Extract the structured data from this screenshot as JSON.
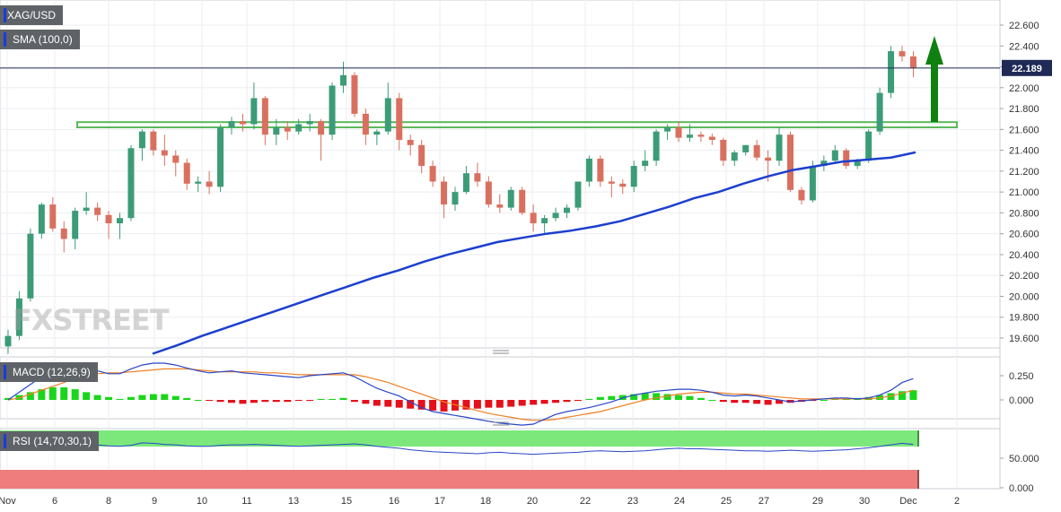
{
  "header": {
    "symbol": "XAG/USD",
    "sma_label": "SMA (100,0)",
    "macd_label": "MACD (12,26,9)",
    "rsi_label": "RSI (14,70,30,1)",
    "watermark": "FXSTREET"
  },
  "colors": {
    "up": "#3c9c78",
    "down": "#d9705f",
    "sma": "#1c3fcf",
    "macd_line": "#2846c8",
    "signal_line": "#f07f22",
    "hist_pos": "#1ad61a",
    "hist_neg": "#e5101a",
    "zone": "#5cb85c",
    "arrow": "#108010",
    "current_line": "#1f2a55",
    "rsi_overbought": "#7ce87c",
    "rsi_oversold": "#ef7d7d"
  },
  "chart_data": [
    {
      "type": "candlestick",
      "title": "XAG/USD",
      "ylim": [
        19.5,
        22.7
      ],
      "y_ticks": [
        "22.600",
        "22.400",
        "22.200",
        "22.000",
        "21.800",
        "21.600",
        "21.400",
        "21.200",
        "21.000",
        "20.800",
        "20.600",
        "20.400",
        "20.200",
        "20.000",
        "19.800",
        "19.600"
      ],
      "x_ticks": [
        "Nov",
        "6",
        "8",
        "9",
        "10",
        "11",
        "13",
        "15",
        "16",
        "17",
        "18",
        "20",
        "22",
        "23",
        "24",
        "25",
        "27",
        "29",
        "30",
        "Dec",
        "2"
      ],
      "current_price": "22.189",
      "sma_100": [
        19.45,
        19.53,
        19.62,
        19.7,
        19.78,
        19.86,
        19.94,
        20.02,
        20.1,
        20.18,
        20.25,
        20.33,
        20.4,
        20.46,
        20.52,
        20.56,
        20.6,
        20.63,
        20.67,
        20.72,
        20.79,
        20.86,
        20.94,
        21.0,
        21.08,
        21.15,
        21.21,
        21.25,
        21.29,
        21.31,
        21.33,
        21.38
      ],
      "resistance_zone": [
        21.62,
        21.67
      ],
      "candles": [
        [
          19.52,
          19.68,
          19.45,
          19.62
        ],
        [
          19.62,
          20.05,
          19.58,
          19.98
        ],
        [
          19.98,
          20.65,
          19.95,
          20.6
        ],
        [
          20.6,
          20.9,
          20.55,
          20.88
        ],
        [
          20.88,
          20.95,
          20.62,
          20.65
        ],
        [
          20.65,
          20.72,
          20.42,
          20.55
        ],
        [
          20.55,
          20.85,
          20.45,
          20.82
        ],
        [
          20.82,
          21.0,
          20.78,
          20.85
        ],
        [
          20.85,
          20.9,
          20.72,
          20.78
        ],
        [
          20.78,
          20.82,
          20.55,
          20.7
        ],
        [
          20.7,
          20.8,
          20.55,
          20.75
        ],
        [
          20.75,
          21.45,
          20.72,
          21.42
        ],
        [
          21.42,
          21.6,
          21.3,
          21.58
        ],
        [
          21.58,
          21.6,
          21.35,
          21.4
        ],
        [
          21.4,
          21.55,
          21.25,
          21.35
        ],
        [
          21.35,
          21.4,
          21.15,
          21.28
        ],
        [
          21.28,
          21.32,
          21.02,
          21.08
        ],
        [
          21.08,
          21.15,
          21.0,
          21.1
        ],
        [
          21.1,
          21.2,
          20.98,
          21.05
        ],
        [
          21.05,
          21.65,
          21.0,
          21.62
        ],
        [
          21.62,
          21.72,
          21.55,
          21.68
        ],
        [
          21.68,
          21.75,
          21.58,
          21.65
        ],
        [
          21.65,
          22.05,
          21.6,
          21.9
        ],
        [
          21.9,
          21.92,
          21.45,
          21.55
        ],
        [
          21.55,
          21.7,
          21.45,
          21.62
        ],
        [
          21.62,
          21.68,
          21.5,
          21.58
        ],
        [
          21.58,
          21.7,
          21.55,
          21.65
        ],
        [
          21.65,
          21.75,
          21.58,
          21.68
        ],
        [
          21.68,
          21.7,
          21.3,
          21.55
        ],
        [
          21.55,
          22.05,
          21.5,
          22.02
        ],
        [
          22.02,
          22.25,
          21.95,
          22.12
        ],
        [
          22.12,
          22.15,
          21.72,
          21.75
        ],
        [
          21.75,
          21.8,
          21.45,
          21.55
        ],
        [
          21.55,
          21.6,
          21.45,
          21.58
        ],
        [
          21.58,
          22.05,
          21.55,
          21.9
        ],
        [
          21.9,
          21.95,
          21.4,
          21.5
        ],
        [
          21.5,
          21.55,
          21.35,
          21.45
        ],
        [
          21.45,
          21.5,
          21.18,
          21.25
        ],
        [
          21.25,
          21.3,
          21.05,
          21.1
        ],
        [
          21.1,
          21.15,
          20.75,
          20.88
        ],
        [
          20.88,
          21.05,
          20.82,
          21.0
        ],
        [
          21.0,
          21.25,
          20.98,
          21.18
        ],
        [
          21.18,
          21.28,
          21.05,
          21.1
        ],
        [
          21.1,
          21.15,
          20.85,
          20.88
        ],
        [
          20.88,
          20.98,
          20.8,
          20.85
        ],
        [
          20.85,
          21.05,
          20.82,
          21.02
        ],
        [
          21.02,
          21.05,
          20.78,
          20.8
        ],
        [
          20.8,
          20.88,
          20.62,
          20.7
        ],
        [
          20.7,
          20.78,
          20.6,
          20.75
        ],
        [
          20.75,
          20.85,
          20.72,
          20.8
        ],
        [
          20.8,
          20.88,
          20.75,
          20.85
        ],
        [
          20.85,
          21.1,
          20.82,
          21.1
        ],
        [
          21.1,
          21.35,
          21.05,
          21.32
        ],
        [
          21.32,
          21.35,
          21.05,
          21.1
        ],
        [
          21.1,
          21.15,
          20.95,
          21.08
        ],
        [
          21.08,
          21.12,
          20.98,
          21.05
        ],
        [
          21.05,
          21.3,
          21.0,
          21.25
        ],
        [
          21.25,
          21.4,
          21.2,
          21.3
        ],
        [
          21.3,
          21.6,
          21.25,
          21.58
        ],
        [
          21.58,
          21.65,
          21.5,
          21.62
        ],
        [
          21.62,
          21.68,
          21.48,
          21.52
        ],
        [
          21.52,
          21.65,
          21.48,
          21.55
        ],
        [
          21.55,
          21.58,
          21.48,
          21.53
        ],
        [
          21.53,
          21.56,
          21.45,
          21.5
        ],
        [
          21.5,
          21.52,
          21.25,
          21.3
        ],
        [
          21.3,
          21.4,
          21.25,
          21.38
        ],
        [
          21.38,
          21.45,
          21.35,
          21.45
        ],
        [
          21.45,
          21.5,
          21.3,
          21.33
        ],
        [
          21.33,
          21.4,
          21.1,
          21.3
        ],
        [
          21.3,
          21.62,
          21.25,
          21.55
        ],
        [
          21.55,
          21.58,
          21.0,
          21.02
        ],
        [
          21.02,
          21.05,
          20.88,
          20.92
        ],
        [
          20.92,
          21.3,
          20.9,
          21.25
        ],
        [
          21.25,
          21.35,
          21.2,
          21.3
        ],
        [
          21.3,
          21.45,
          21.28,
          21.4
        ],
        [
          21.4,
          21.42,
          21.22,
          21.25
        ],
        [
          21.25,
          21.32,
          21.22,
          21.3
        ],
        [
          21.3,
          21.6,
          21.28,
          21.58
        ],
        [
          21.58,
          22.0,
          21.55,
          21.95
        ],
        [
          21.95,
          22.4,
          21.9,
          22.35
        ],
        [
          22.35,
          22.4,
          22.25,
          22.3
        ],
        [
          22.3,
          22.35,
          22.1,
          22.19
        ]
      ]
    },
    {
      "type": "macd",
      "title": "MACD (12,26,9)",
      "y_ticks": [
        "0.250",
        "0.000"
      ],
      "ylim": [
        -0.35,
        0.45
      ],
      "macd": [
        0.0,
        0.08,
        0.16,
        0.24,
        0.3,
        0.33,
        0.34,
        0.33,
        0.3,
        0.27,
        0.27,
        0.32,
        0.36,
        0.38,
        0.38,
        0.36,
        0.33,
        0.3,
        0.28,
        0.29,
        0.3,
        0.28,
        0.27,
        0.26,
        0.25,
        0.24,
        0.23,
        0.25,
        0.26,
        0.27,
        0.28,
        0.24,
        0.18,
        0.12,
        0.08,
        0.04,
        -0.02,
        -0.08,
        -0.12,
        -0.14,
        -0.16,
        -0.18,
        -0.2,
        -0.22,
        -0.24,
        -0.25,
        -0.26,
        -0.25,
        -0.2,
        -0.15,
        -0.12,
        -0.1,
        -0.08,
        -0.05,
        -0.02,
        0.02,
        0.05,
        0.07,
        0.09,
        0.1,
        0.11,
        0.11,
        0.1,
        0.08,
        0.05,
        0.04,
        0.05,
        0.04,
        0.02,
        0.0,
        -0.02,
        -0.01,
        0.0,
        0.01,
        0.02,
        0.02,
        0.01,
        0.02,
        0.05,
        0.1,
        0.18,
        0.22
      ],
      "signal": [
        0.0,
        0.02,
        0.06,
        0.1,
        0.14,
        0.18,
        0.22,
        0.25,
        0.27,
        0.28,
        0.28,
        0.29,
        0.3,
        0.31,
        0.32,
        0.32,
        0.32,
        0.31,
        0.3,
        0.29,
        0.29,
        0.29,
        0.29,
        0.28,
        0.28,
        0.27,
        0.26,
        0.26,
        0.26,
        0.26,
        0.26,
        0.26,
        0.24,
        0.21,
        0.18,
        0.14,
        0.1,
        0.06,
        0.02,
        -0.02,
        -0.05,
        -0.08,
        -0.11,
        -0.14,
        -0.16,
        -0.18,
        -0.2,
        -0.21,
        -0.21,
        -0.2,
        -0.18,
        -0.16,
        -0.14,
        -0.12,
        -0.09,
        -0.06,
        -0.03,
        0.0,
        0.02,
        0.04,
        0.06,
        0.07,
        0.08,
        0.08,
        0.07,
        0.06,
        0.06,
        0.05,
        0.04,
        0.03,
        0.02,
        0.01,
        0.01,
        0.01,
        0.01,
        0.01,
        0.01,
        0.01,
        0.02,
        0.04,
        0.07,
        0.1
      ],
      "histogram": [
        0.02,
        0.05,
        0.08,
        0.11,
        0.13,
        0.13,
        0.11,
        0.08,
        0.05,
        0.03,
        0.01,
        0.03,
        0.05,
        0.06,
        0.06,
        0.04,
        0.02,
        0.0,
        -0.01,
        -0.02,
        -0.03,
        -0.04,
        -0.03,
        -0.02,
        -0.02,
        -0.02,
        -0.01,
        -0.01,
        0.01,
        0.01,
        0.02,
        -0.02,
        -0.04,
        -0.06,
        -0.07,
        -0.08,
        -0.09,
        -0.1,
        -0.11,
        -0.12,
        -0.11,
        -0.1,
        -0.09,
        -0.08,
        -0.08,
        -0.07,
        -0.06,
        -0.05,
        -0.04,
        -0.03,
        -0.02,
        -0.01,
        0.01,
        0.03,
        0.04,
        0.05,
        0.06,
        0.07,
        0.07,
        0.06,
        0.05,
        0.04,
        0.02,
        0.0,
        -0.02,
        -0.03,
        -0.03,
        -0.04,
        -0.05,
        -0.04,
        -0.03,
        -0.02,
        -0.01,
        0.0,
        0.01,
        0.01,
        0.02,
        0.03,
        0.05,
        0.07,
        0.09,
        0.1
      ]
    },
    {
      "type": "rsi",
      "title": "RSI (14,70,30,1)",
      "y_ticks": [
        "50.000",
        "0.000"
      ],
      "ylim": [
        0,
        100
      ],
      "overbought": 70,
      "oversold": 30,
      "values": [
        68,
        70,
        72,
        73,
        72,
        70,
        68,
        69,
        70,
        68,
        67,
        69,
        74,
        73,
        71,
        70,
        68,
        67,
        67,
        69,
        70,
        70,
        71,
        70,
        69,
        68,
        67,
        68,
        69,
        70,
        71,
        72,
        70,
        67,
        65,
        63,
        60,
        58,
        56,
        55,
        54,
        53,
        52,
        54,
        55,
        53,
        52,
        51,
        52,
        53,
        54,
        55,
        57,
        58,
        57,
        56,
        57,
        58,
        60,
        62,
        63,
        62,
        62,
        61,
        60,
        59,
        58,
        58,
        57,
        58,
        59,
        58,
        57,
        58,
        59,
        60,
        62,
        64,
        67,
        70,
        73,
        71
      ]
    }
  ]
}
